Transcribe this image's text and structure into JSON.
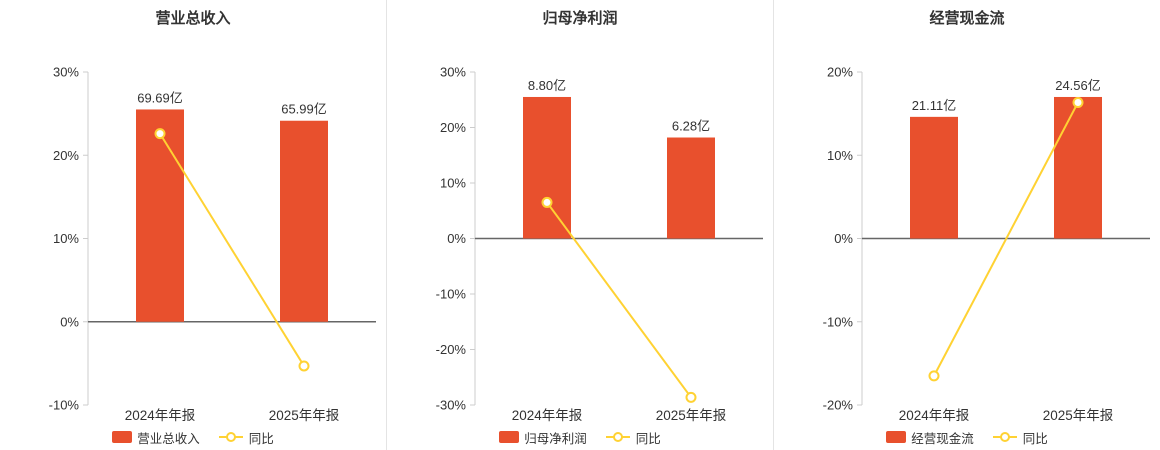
{
  "colors": {
    "bar": "#e8502d",
    "line": "#ffd233",
    "marker_fill": "#ffffff",
    "axis": "#cccccc",
    "zero_line": "#666666",
    "text": "#333333",
    "divider": "#e4e4e4",
    "background": "#ffffff"
  },
  "chart_data": [
    {
      "type": "bar",
      "title": "营业总收入",
      "categories": [
        "2024年年报",
        "2025年年报"
      ],
      "bar_series": {
        "name": "营业总收入",
        "unit": "亿",
        "values": [
          69.69,
          65.99
        ],
        "labels": [
          "69.69亿",
          "65.99亿"
        ]
      },
      "line_series": {
        "name": "同比",
        "unit": "%",
        "values": [
          22.6,
          -5.31
        ]
      },
      "ylim": [
        -10,
        30
      ],
      "y_ticks": [
        30,
        20,
        10,
        0,
        -10
      ],
      "y_tick_labels": [
        "30%",
        "20%",
        "10%",
        "0%",
        "-10%"
      ],
      "legend_position": "bottom",
      "grid": false
    },
    {
      "type": "bar",
      "title": "归母净利润",
      "categories": [
        "2024年年报",
        "2025年年报"
      ],
      "bar_series": {
        "name": "归母净利润",
        "unit": "亿",
        "values": [
          8.8,
          6.28
        ],
        "labels": [
          "8.80亿",
          "6.28亿"
        ]
      },
      "line_series": {
        "name": "同比",
        "unit": "%",
        "values": [
          6.5,
          -28.62
        ]
      },
      "ylim": [
        -30,
        30
      ],
      "y_ticks": [
        30,
        20,
        10,
        0,
        -10,
        -20,
        -30
      ],
      "y_tick_labels": [
        "30%",
        "20%",
        "10%",
        "0%",
        "-10%",
        "-20%",
        "-30%"
      ],
      "legend_position": "bottom",
      "grid": false
    },
    {
      "type": "bar",
      "title": "经营现金流",
      "categories": [
        "2024年年报",
        "2025年年报"
      ],
      "bar_series": {
        "name": "经营现金流",
        "unit": "亿",
        "values": [
          21.11,
          24.56
        ],
        "labels": [
          "21.11亿",
          "24.56亿"
        ]
      },
      "line_series": {
        "name": "同比",
        "unit": "%",
        "values": [
          -16.5,
          16.34
        ]
      },
      "ylim": [
        -20,
        20
      ],
      "y_ticks": [
        20,
        10,
        0,
        -10,
        -20
      ],
      "y_tick_labels": [
        "20%",
        "10%",
        "0%",
        "-10%",
        "-20%"
      ],
      "legend_position": "bottom",
      "grid": false
    }
  ]
}
